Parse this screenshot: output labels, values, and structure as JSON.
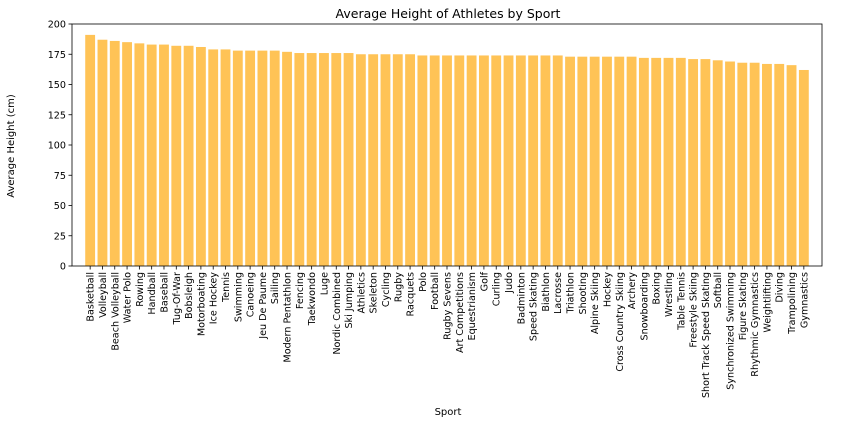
{
  "chart_data": {
    "type": "bar",
    "title": "Average Height of Athletes by Sport",
    "xlabel": "Sport",
    "ylabel": "Average Height (cm)",
    "ylim": [
      0,
      200
    ],
    "yticks": [
      0,
      25,
      50,
      75,
      100,
      125,
      150,
      175,
      200
    ],
    "bar_color": "#ffc04d",
    "grid": false,
    "categories": [
      "Basketball",
      "Volleyball",
      "Beach Volleyball",
      "Water Polo",
      "Rowing",
      "Handball",
      "Baseball",
      "Tug-Of-War",
      "Bobsleigh",
      "Motorboating",
      "Ice Hockey",
      "Tennis",
      "Swimming",
      "Canoeing",
      "Jeu De Paume",
      "Sailing",
      "Modern Pentathlon",
      "Fencing",
      "Taekwondo",
      "Luge",
      "Nordic Combined",
      "Ski Jumping",
      "Athletics",
      "Skeleton",
      "Cycling",
      "Rugby",
      "Racquets",
      "Polo",
      "Football",
      "Rugby Sevens",
      "Art Competitions",
      "Equestrianism",
      "Golf",
      "Curling",
      "Judo",
      "Badminton",
      "Speed Skating",
      "Biathlon",
      "Lacrosse",
      "Triathlon",
      "Shooting",
      "Alpine Skiing",
      "Hockey",
      "Cross Country Skiing",
      "Archery",
      "Snowboarding",
      "Boxing",
      "Wrestling",
      "Table Tennis",
      "Freestyle Skiing",
      "Short Track Speed Skating",
      "Softball",
      "Synchronized Swimming",
      "Figure Skating",
      "Rhythmic Gymnastics",
      "Weightlifting",
      "Diving",
      "Trampolining",
      "Gymnastics"
    ],
    "values": [
      191,
      187,
      186,
      185,
      184,
      183,
      183,
      182,
      182,
      181,
      179,
      179,
      178,
      178,
      178,
      178,
      177,
      176,
      176,
      176,
      176,
      176,
      175,
      175,
      175,
      175,
      175,
      174,
      174,
      174,
      174,
      174,
      174,
      174,
      174,
      174,
      174,
      174,
      174,
      173,
      173,
      173,
      173,
      173,
      173,
      172,
      172,
      172,
      172,
      171,
      171,
      170,
      169,
      168,
      168,
      167,
      167,
      166,
      162
    ]
  }
}
